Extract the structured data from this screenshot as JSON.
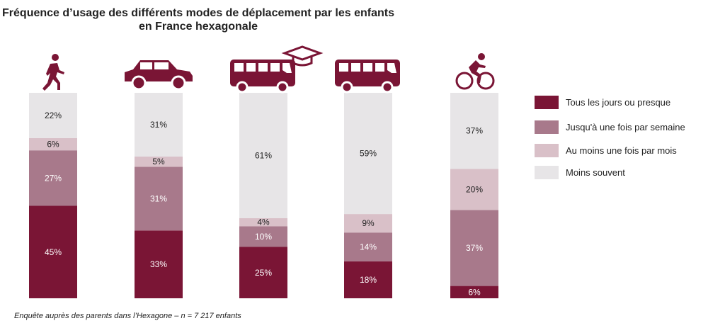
{
  "chart_data": {
    "type": "bar",
    "stacked": true,
    "orientation": "vertical",
    "title": "Fréquence d’usage des différents modes de déplacement par les enfants en France hexagonale",
    "title_lines": [
      "Fréquence d’usage des différents modes de déplacement par les enfants",
      "en France hexagonale"
    ],
    "categories": [
      "walk-icon",
      "car-icon",
      "school-bus-icon",
      "bus-icon",
      "bicycle-icon"
    ],
    "series": [
      {
        "name": "Tous les jours ou presque",
        "color": "#7a1535",
        "values": [
          45,
          33,
          25,
          18,
          6
        ]
      },
      {
        "name": "Jusqu'à une fois par semaine",
        "color": "#a8798b",
        "values": [
          27,
          31,
          10,
          14,
          37
        ]
      },
      {
        "name": "Au moins une fois par mois",
        "color": "#d9c0c8",
        "values": [
          6,
          5,
          4,
          9,
          20
        ]
      },
      {
        "name": "Moins souvent",
        "color": "#e7e5e7",
        "values": [
          22,
          31,
          61,
          59,
          37
        ]
      }
    ],
    "data_labels": [
      [
        "45%",
        "27%",
        "6%",
        "22%"
      ],
      [
        "33%",
        "31%",
        "5%",
        "31%"
      ],
      [
        "25%",
        "10%",
        "4%",
        "61%"
      ],
      [
        "18%",
        "14%",
        "9%",
        "59%"
      ],
      [
        "6%",
        "37%",
        "20%",
        "37%"
      ]
    ],
    "legend": "right",
    "grid": false,
    "ylim": [
      0,
      100
    ]
  },
  "footnote": "Enquête auprès des parents dans l’Hexagone – n = 7 217 enfants",
  "icon_color": "#7a1535"
}
